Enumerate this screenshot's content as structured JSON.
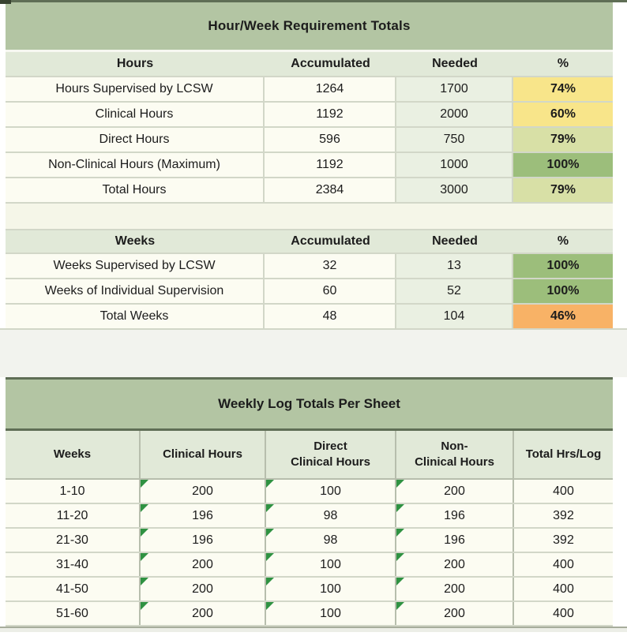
{
  "colors": {
    "banner_green": "#b3c5a3",
    "header_green": "#e1e9d8",
    "needed_green": "#eaf0e2",
    "cell_ivory": "#fcfcf2",
    "grid_light": "#d2d7c8",
    "grid_mid": "#b7bead",
    "edge_dark": "#5f6e55",
    "flag_green": "#2f9242",
    "status_yellow": "#f8e58a",
    "status_pale_green": "#d8e0a6",
    "status_green": "#9cbe7b",
    "status_orange": "#f8b266"
  },
  "requirements": {
    "title": "Hour/Week Requirement Totals",
    "hours": {
      "headers": [
        "Hours",
        "Accumulated",
        "Needed",
        "%"
      ],
      "rows": [
        {
          "label": "Hours Supervised by LCSW",
          "accumulated": "1264",
          "needed": "1700",
          "percent": "74%",
          "percent_color": "#f8e58a"
        },
        {
          "label": "Clinical Hours",
          "accumulated": "1192",
          "needed": "2000",
          "percent": "60%",
          "percent_color": "#f8e58a"
        },
        {
          "label": "Direct Hours",
          "accumulated": "596",
          "needed": "750",
          "percent": "79%",
          "percent_color": "#d8e0a6"
        },
        {
          "label": "Non-Clinical Hours (Maximum)",
          "accumulated": "1192",
          "needed": "1000",
          "percent": "100%",
          "percent_color": "#9cbe7b"
        },
        {
          "label": "Total Hours",
          "accumulated": "2384",
          "needed": "3000",
          "percent": "79%",
          "percent_color": "#d8e0a6"
        }
      ]
    },
    "weeks": {
      "headers": [
        "Weeks",
        "Accumulated",
        "Needed",
        "%"
      ],
      "rows": [
        {
          "label": "Weeks Supervised by LCSW",
          "accumulated": "32",
          "needed": "13",
          "percent": "100%",
          "percent_color": "#9cbe7b"
        },
        {
          "label": "Weeks of Individual Supervision",
          "accumulated": "60",
          "needed": "52",
          "percent": "100%",
          "percent_color": "#9cbe7b"
        },
        {
          "label": "Total Weeks",
          "accumulated": "48",
          "needed": "104",
          "percent": "46%",
          "percent_color": "#f8b266"
        }
      ]
    }
  },
  "weekly_log": {
    "title": "Weekly Log Totals Per Sheet",
    "headers": [
      "Weeks",
      "Clinical Hours",
      "Direct\nClinical Hours",
      "Non-\nClinical Hours",
      "Total Hrs/Log"
    ],
    "rows": [
      {
        "weeks": "1-10",
        "clinical": "200",
        "direct": "100",
        "non_clinical": "200",
        "total": "400"
      },
      {
        "weeks": "11-20",
        "clinical": "196",
        "direct": "98",
        "non_clinical": "196",
        "total": "392"
      },
      {
        "weeks": "21-30",
        "clinical": "196",
        "direct": "98",
        "non_clinical": "196",
        "total": "392"
      },
      {
        "weeks": "31-40",
        "clinical": "200",
        "direct": "100",
        "non_clinical": "200",
        "total": "400"
      },
      {
        "weeks": "41-50",
        "clinical": "200",
        "direct": "100",
        "non_clinical": "200",
        "total": "400"
      },
      {
        "weeks": "51-60",
        "clinical": "200",
        "direct": "100",
        "non_clinical": "200",
        "total": "400"
      }
    ]
  }
}
